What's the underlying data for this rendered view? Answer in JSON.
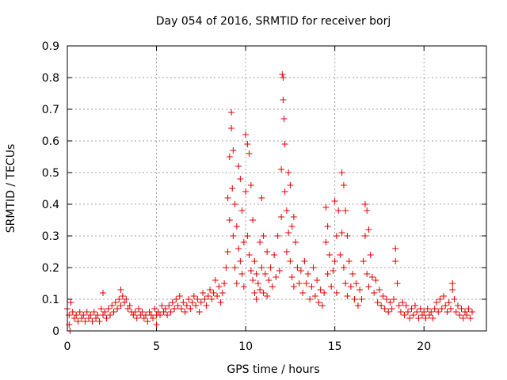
{
  "chart_data": {
    "type": "scatter",
    "title": "Day 054 of 2016, SRMTID for receiver borj",
    "xlabel": "GPS time / hours",
    "ylabel": "SRMTID / TECUs",
    "xlim": [
      0,
      23.5
    ],
    "ylim": [
      0,
      0.9
    ],
    "xticks": [
      0,
      5,
      10,
      15,
      20
    ],
    "yticks": [
      0,
      0.1,
      0.2,
      0.3,
      0.4,
      0.5,
      0.6,
      0.7,
      0.8,
      0.9
    ],
    "xtick_labels": [
      "0",
      "5",
      "10",
      "15",
      "20"
    ],
    "ytick_labels": [
      "0",
      "0.1",
      "0.2",
      "0.3",
      "0.4",
      "0.5",
      "0.6",
      "0.7",
      "0.8",
      "0.9"
    ],
    "grid": true,
    "marker": "+",
    "color": "#e00000",
    "series": [
      {
        "name": "SRMTID",
        "points": [
          [
            0.0,
            0.07
          ],
          [
            0.1,
            0.05
          ],
          [
            0.1,
            0.02
          ],
          [
            0.15,
            0.0
          ],
          [
            0.2,
            0.09
          ],
          [
            0.3,
            0.06
          ],
          [
            0.4,
            0.04
          ],
          [
            0.5,
            0.05
          ],
          [
            0.6,
            0.03
          ],
          [
            0.7,
            0.06
          ],
          [
            0.8,
            0.04
          ],
          [
            0.9,
            0.05
          ],
          [
            1.0,
            0.03
          ],
          [
            1.1,
            0.06
          ],
          [
            1.2,
            0.04
          ],
          [
            1.3,
            0.05
          ],
          [
            1.4,
            0.03
          ],
          [
            1.5,
            0.06
          ],
          [
            1.6,
            0.04
          ],
          [
            1.7,
            0.05
          ],
          [
            1.8,
            0.03
          ],
          [
            1.9,
            0.07
          ],
          [
            2.0,
            0.05
          ],
          [
            2.0,
            0.12
          ],
          [
            2.1,
            0.06
          ],
          [
            2.2,
            0.04
          ],
          [
            2.3,
            0.07
          ],
          [
            2.4,
            0.05
          ],
          [
            2.5,
            0.08
          ],
          [
            2.6,
            0.06
          ],
          [
            2.7,
            0.09
          ],
          [
            2.8,
            0.07
          ],
          [
            2.9,
            0.1
          ],
          [
            3.0,
            0.08
          ],
          [
            3.0,
            0.13
          ],
          [
            3.1,
            0.11
          ],
          [
            3.2,
            0.09
          ],
          [
            3.3,
            0.1
          ],
          [
            3.4,
            0.07
          ],
          [
            3.5,
            0.08
          ],
          [
            3.6,
            0.06
          ],
          [
            3.7,
            0.05
          ],
          [
            3.8,
            0.06
          ],
          [
            3.9,
            0.04
          ],
          [
            4.0,
            0.07
          ],
          [
            4.1,
            0.05
          ],
          [
            4.2,
            0.06
          ],
          [
            4.3,
            0.04
          ],
          [
            4.4,
            0.05
          ],
          [
            4.5,
            0.03
          ],
          [
            4.6,
            0.06
          ],
          [
            4.7,
            0.05
          ],
          [
            4.8,
            0.04
          ],
          [
            4.9,
            0.07
          ],
          [
            5.0,
            0.05
          ],
          [
            5.0,
            0.02
          ],
          [
            5.1,
            0.06
          ],
          [
            5.2,
            0.05
          ],
          [
            5.3,
            0.08
          ],
          [
            5.4,
            0.06
          ],
          [
            5.5,
            0.07
          ],
          [
            5.6,
            0.05
          ],
          [
            5.7,
            0.08
          ],
          [
            5.8,
            0.06
          ],
          [
            5.9,
            0.09
          ],
          [
            6.0,
            0.07
          ],
          [
            6.1,
            0.1
          ],
          [
            6.2,
            0.08
          ],
          [
            6.3,
            0.11
          ],
          [
            6.4,
            0.07
          ],
          [
            6.5,
            0.09
          ],
          [
            6.6,
            0.06
          ],
          [
            6.7,
            0.08
          ],
          [
            6.8,
            0.1
          ],
          [
            6.9,
            0.07
          ],
          [
            7.0,
            0.09
          ],
          [
            7.1,
            0.11
          ],
          [
            7.2,
            0.08
          ],
          [
            7.3,
            0.1
          ],
          [
            7.4,
            0.06
          ],
          [
            7.5,
            0.09
          ],
          [
            7.6,
            0.12
          ],
          [
            7.7,
            0.1
          ],
          [
            7.8,
            0.08
          ],
          [
            7.9,
            0.11
          ],
          [
            8.0,
            0.13
          ],
          [
            8.1,
            0.1
          ],
          [
            8.2,
            0.12
          ],
          [
            8.3,
            0.16
          ],
          [
            8.4,
            0.11
          ],
          [
            8.5,
            0.14
          ],
          [
            8.6,
            0.09
          ],
          [
            8.7,
            0.12
          ],
          [
            8.8,
            0.15
          ],
          [
            8.9,
            0.2
          ],
          [
            9.0,
            0.42
          ],
          [
            9.0,
            0.25
          ],
          [
            9.1,
            0.55
          ],
          [
            9.1,
            0.35
          ],
          [
            9.2,
            0.64
          ],
          [
            9.2,
            0.69
          ],
          [
            9.25,
            0.45
          ],
          [
            9.3,
            0.57
          ],
          [
            9.3,
            0.3
          ],
          [
            9.4,
            0.4
          ],
          [
            9.4,
            0.2
          ],
          [
            9.5,
            0.33
          ],
          [
            9.5,
            0.15
          ],
          [
            9.6,
            0.52
          ],
          [
            9.6,
            0.26
          ],
          [
            9.7,
            0.48
          ],
          [
            9.7,
            0.22
          ],
          [
            9.8,
            0.38
          ],
          [
            9.8,
            0.18
          ],
          [
            9.9,
            0.28
          ],
          [
            9.9,
            0.14
          ],
          [
            10.0,
            0.62
          ],
          [
            10.0,
            0.44
          ],
          [
            10.1,
            0.59
          ],
          [
            10.1,
            0.3
          ],
          [
            10.2,
            0.56
          ],
          [
            10.2,
            0.24
          ],
          [
            10.3,
            0.46
          ],
          [
            10.3,
            0.19
          ],
          [
            10.4,
            0.35
          ],
          [
            10.4,
            0.16
          ],
          [
            10.5,
            0.22
          ],
          [
            10.5,
            0.12
          ],
          [
            10.6,
            0.18
          ],
          [
            10.6,
            0.1
          ],
          [
            10.7,
            0.15
          ],
          [
            10.8,
            0.28
          ],
          [
            10.8,
            0.13
          ],
          [
            10.9,
            0.42
          ],
          [
            10.9,
            0.2
          ],
          [
            11.0,
            0.3
          ],
          [
            11.0,
            0.12
          ],
          [
            11.1,
            0.18
          ],
          [
            11.2,
            0.25
          ],
          [
            11.2,
            0.11
          ],
          [
            11.3,
            0.16
          ],
          [
            11.4,
            0.2
          ],
          [
            11.5,
            0.14
          ],
          [
            11.6,
            0.24
          ],
          [
            11.7,
            0.17
          ],
          [
            11.8,
            0.3
          ],
          [
            11.9,
            0.19
          ],
          [
            12.0,
            0.51
          ],
          [
            12.0,
            0.36
          ],
          [
            12.05,
            0.81
          ],
          [
            12.1,
            0.8
          ],
          [
            12.1,
            0.73
          ],
          [
            12.15,
            0.67
          ],
          [
            12.2,
            0.59
          ],
          [
            12.2,
            0.44
          ],
          [
            12.3,
            0.38
          ],
          [
            12.3,
            0.25
          ],
          [
            12.4,
            0.5
          ],
          [
            12.4,
            0.31
          ],
          [
            12.5,
            0.46
          ],
          [
            12.5,
            0.22
          ],
          [
            12.6,
            0.33
          ],
          [
            12.6,
            0.17
          ],
          [
            12.7,
            0.36
          ],
          [
            12.7,
            0.14
          ],
          [
            12.8,
            0.28
          ],
          [
            12.9,
            0.2
          ],
          [
            13.0,
            0.15
          ],
          [
            13.1,
            0.19
          ],
          [
            13.2,
            0.12
          ],
          [
            13.3,
            0.22
          ],
          [
            13.4,
            0.15
          ],
          [
            13.5,
            0.18
          ],
          [
            13.6,
            0.1
          ],
          [
            13.7,
            0.14
          ],
          [
            13.8,
            0.2
          ],
          [
            13.9,
            0.11
          ],
          [
            14.0,
            0.16
          ],
          [
            14.1,
            0.09
          ],
          [
            14.2,
            0.13
          ],
          [
            14.3,
            0.08
          ],
          [
            14.4,
            0.12
          ],
          [
            14.5,
            0.28
          ],
          [
            14.5,
            0.39
          ],
          [
            14.6,
            0.33
          ],
          [
            14.6,
            0.18
          ],
          [
            14.7,
            0.24
          ],
          [
            14.8,
            0.14
          ],
          [
            14.9,
            0.19
          ],
          [
            15.0,
            0.41
          ],
          [
            15.0,
            0.22
          ],
          [
            15.1,
            0.3
          ],
          [
            15.1,
            0.12
          ],
          [
            15.2,
            0.38
          ],
          [
            15.3,
            0.24
          ],
          [
            15.4,
            0.5
          ],
          [
            15.4,
            0.31
          ],
          [
            15.5,
            0.46
          ],
          [
            15.5,
            0.2
          ],
          [
            15.6,
            0.38
          ],
          [
            15.6,
            0.15
          ],
          [
            15.7,
            0.3
          ],
          [
            15.7,
            0.11
          ],
          [
            15.8,
            0.22
          ],
          [
            15.9,
            0.14
          ],
          [
            16.0,
            0.18
          ],
          [
            16.1,
            0.1
          ],
          [
            16.2,
            0.15
          ],
          [
            16.3,
            0.08
          ],
          [
            16.4,
            0.13
          ],
          [
            16.5,
            0.1
          ],
          [
            16.6,
            0.22
          ],
          [
            16.7,
            0.4
          ],
          [
            16.7,
            0.3
          ],
          [
            16.8,
            0.38
          ],
          [
            16.8,
            0.18
          ],
          [
            16.9,
            0.32
          ],
          [
            16.9,
            0.14
          ],
          [
            17.0,
            0.24
          ],
          [
            17.1,
            0.17
          ],
          [
            17.2,
            0.12
          ],
          [
            17.3,
            0.16
          ],
          [
            17.4,
            0.09
          ],
          [
            17.5,
            0.13
          ],
          [
            17.6,
            0.08
          ],
          [
            17.7,
            0.11
          ],
          [
            17.8,
            0.07
          ],
          [
            17.9,
            0.1
          ],
          [
            18.0,
            0.06
          ],
          [
            18.1,
            0.09
          ],
          [
            18.2,
            0.07
          ],
          [
            18.3,
            0.1
          ],
          [
            18.4,
            0.26
          ],
          [
            18.4,
            0.22
          ],
          [
            18.5,
            0.15
          ],
          [
            18.6,
            0.08
          ],
          [
            18.7,
            0.06
          ],
          [
            18.8,
            0.09
          ],
          [
            18.9,
            0.05
          ],
          [
            19.0,
            0.08
          ],
          [
            19.1,
            0.06
          ],
          [
            19.2,
            0.04
          ],
          [
            19.3,
            0.07
          ],
          [
            19.4,
            0.05
          ],
          [
            19.5,
            0.08
          ],
          [
            19.6,
            0.06
          ],
          [
            19.7,
            0.04
          ],
          [
            19.8,
            0.07
          ],
          [
            19.9,
            0.05
          ],
          [
            20.0,
            0.06
          ],
          [
            20.1,
            0.04
          ],
          [
            20.2,
            0.07
          ],
          [
            20.3,
            0.05
          ],
          [
            20.4,
            0.06
          ],
          [
            20.5,
            0.04
          ],
          [
            20.6,
            0.07
          ],
          [
            20.7,
            0.09
          ],
          [
            20.8,
            0.06
          ],
          [
            20.9,
            0.1
          ],
          [
            21.0,
            0.07
          ],
          [
            21.1,
            0.11
          ],
          [
            21.2,
            0.08
          ],
          [
            21.3,
            0.06
          ],
          [
            21.4,
            0.09
          ],
          [
            21.5,
            0.07
          ],
          [
            21.6,
            0.13
          ],
          [
            21.6,
            0.15
          ],
          [
            21.7,
            0.1
          ],
          [
            21.8,
            0.06
          ],
          [
            21.9,
            0.08
          ],
          [
            22.0,
            0.05
          ],
          [
            22.1,
            0.07
          ],
          [
            22.2,
            0.04
          ],
          [
            22.3,
            0.06
          ],
          [
            22.4,
            0.05
          ],
          [
            22.5,
            0.07
          ],
          [
            22.6,
            0.04
          ],
          [
            22.7,
            0.06
          ]
        ]
      }
    ]
  }
}
